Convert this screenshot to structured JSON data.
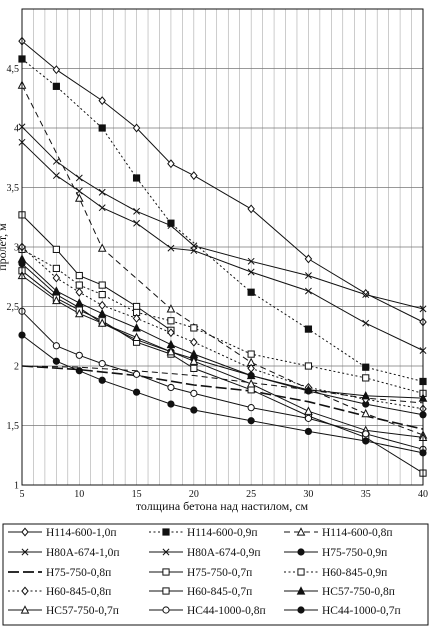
{
  "chart_data": {
    "type": "line",
    "title": "",
    "xlabel": "толщина бетона над настилом, см",
    "ylabel": "пролет, м",
    "xlim": [
      5,
      40
    ],
    "ylim": [
      1,
      5
    ],
    "x_ticks": [
      5,
      10,
      15,
      20,
      25,
      30,
      35,
      40
    ],
    "x_tick_labels": [
      "5",
      "10",
      "15",
      "20",
      "25",
      "30",
      "35",
      "40"
    ],
    "y_ticks": [
      1,
      1.5,
      2,
      2.5,
      3,
      3.5,
      4,
      4.5
    ],
    "y_tick_labels": [
      "1",
      "1,5",
      "2",
      "2,5",
      "3",
      "3,5",
      "4",
      "4,5"
    ],
    "grid": "vertical lines at 1 cm steps, horizontal lines at 0.5 m",
    "legend_position": "bottom",
    "series": [
      {
        "name": "Н114-600-1,0п",
        "marker": "diamond-open",
        "dash": "solid",
        "color": "#111111",
        "x": [
          5,
          8,
          12,
          15,
          18,
          20,
          25,
          30,
          35,
          40
        ],
        "y": [
          4.73,
          4.49,
          4.23,
          4.0,
          3.7,
          3.6,
          3.32,
          2.9,
          2.61,
          2.37
        ]
      },
      {
        "name": "Н114-600-0,9п",
        "marker": "square-filled",
        "dash": "dot",
        "color": "#111111",
        "x": [
          5,
          8,
          12,
          15,
          18,
          25,
          30,
          35,
          40
        ],
        "y": [
          4.58,
          4.35,
          4.0,
          3.58,
          3.2,
          2.62,
          2.31,
          1.99,
          1.87
        ]
      },
      {
        "name": "Н114-600-0,8п",
        "marker": "triangle-open",
        "dash": "dash",
        "color": "#111111",
        "x": [
          5,
          10,
          12,
          18,
          25,
          30,
          35,
          40
        ],
        "y": [
          4.36,
          3.41,
          2.99,
          2.48,
          2.03,
          1.81,
          1.6,
          1.42
        ]
      },
      {
        "name": "Н80А-674-1,0п",
        "marker": "x",
        "dash": "solid",
        "color": "#111111",
        "x": [
          5,
          8,
          10,
          12,
          15,
          18,
          20,
          25,
          30,
          35,
          40
        ],
        "y": [
          4.01,
          3.72,
          3.58,
          3.46,
          3.3,
          3.18,
          3.01,
          2.88,
          2.76,
          2.6,
          2.48
        ]
      },
      {
        "name": "Н80А-674-0,9п",
        "marker": "x",
        "dash": "solid",
        "color": "#111111",
        "x": [
          5,
          8,
          10,
          12,
          15,
          18,
          20,
          25,
          30,
          35,
          40
        ],
        "y": [
          3.88,
          3.6,
          3.47,
          3.33,
          3.2,
          2.99,
          2.97,
          2.79,
          2.63,
          2.36,
          2.13
        ]
      },
      {
        "name": "Н75-750-0,9п",
        "marker": "circle-filled",
        "dash": "solid",
        "color": "#111111",
        "x": [
          5,
          8,
          10,
          12,
          15,
          18,
          20,
          25,
          30,
          35,
          40
        ],
        "y": [
          2.86,
          2.6,
          2.49,
          2.36,
          2.22,
          2.12,
          2.06,
          1.92,
          1.79,
          1.68,
          1.59
        ]
      },
      {
        "name": "Н75-750-0,8п",
        "marker": "none",
        "dash": "longdash",
        "color": "#111111",
        "x": [
          5,
          10,
          15,
          20,
          25,
          30,
          35,
          40
        ],
        "y": [
          2.0,
          1.97,
          1.92,
          1.84,
          1.79,
          1.7,
          1.58,
          1.47
        ]
      },
      {
        "name": "Н75-750-0,7п",
        "marker": "square-open",
        "dash": "solid",
        "color": "#111111",
        "x": [
          5,
          8,
          10,
          12,
          15,
          18
        ],
        "y": [
          3.27,
          2.98,
          2.76,
          2.68,
          2.5,
          2.3
        ]
      },
      {
        "name": "Н60-845-0,9п",
        "marker": "square-open",
        "dash": "dot",
        "color": "#111111",
        "x": [
          5,
          8,
          10,
          12,
          15,
          18,
          20,
          25,
          30,
          35,
          40
        ],
        "y": [
          2.98,
          2.82,
          2.68,
          2.6,
          2.45,
          2.38,
          2.32,
          2.1,
          2.0,
          1.9,
          1.77
        ]
      },
      {
        "name": "Н60-845-0,8п",
        "marker": "diamond-open",
        "dash": "dot",
        "color": "#111111",
        "x": [
          5,
          8,
          10,
          12,
          15,
          18,
          20,
          25,
          30,
          35,
          40
        ],
        "y": [
          3.0,
          2.74,
          2.62,
          2.51,
          2.4,
          2.28,
          2.2,
          1.98,
          1.82,
          1.72,
          1.64
        ]
      },
      {
        "name": "Н60-845-0,7п",
        "marker": "square-open",
        "dash": "solid",
        "color": "#111111",
        "x": [
          5,
          8,
          10,
          12,
          15,
          18,
          20,
          25,
          30,
          35,
          40
        ],
        "y": [
          2.8,
          2.57,
          2.47,
          2.38,
          2.2,
          2.1,
          1.98,
          1.8,
          1.58,
          1.4,
          1.1
        ]
      },
      {
        "name": "НС57-750-0,8п",
        "marker": "triangle-filled",
        "dash": "solid",
        "color": "#111111",
        "x": [
          5,
          8,
          10,
          12,
          15,
          18,
          20,
          25,
          30,
          35,
          40
        ],
        "y": [
          2.9,
          2.63,
          2.53,
          2.44,
          2.32,
          2.18,
          2.1,
          1.92,
          1.8,
          1.75,
          1.73
        ]
      },
      {
        "name": "НС57-750-0,7п",
        "marker": "triangle-open",
        "dash": "solid",
        "color": "#111111",
        "x": [
          5,
          8,
          10,
          12,
          15,
          18,
          20,
          25,
          30,
          35,
          40
        ],
        "y": [
          2.76,
          2.55,
          2.44,
          2.36,
          2.24,
          2.12,
          2.04,
          1.85,
          1.62,
          1.46,
          1.4
        ]
      },
      {
        "name": "НС44-1000-0,8п",
        "marker": "circle-open",
        "dash": "solid",
        "color": "#111111",
        "x": [
          5,
          8,
          10,
          12,
          15,
          18,
          20,
          25,
          30,
          35,
          40
        ],
        "y": [
          2.46,
          2.17,
          2.09,
          2.02,
          1.93,
          1.82,
          1.77,
          1.65,
          1.56,
          1.43,
          1.3
        ]
      },
      {
        "name": "НС44-1000-0,7п",
        "marker": "circle-filled",
        "dash": "solid",
        "color": "#111111",
        "x": [
          5,
          8,
          10,
          12,
          15,
          18,
          20,
          25,
          30,
          35,
          40
        ],
        "y": [
          2.26,
          2.04,
          1.96,
          1.88,
          1.78,
          1.68,
          1.63,
          1.54,
          1.45,
          1.37,
          1.27
        ]
      },
      {
        "name": "",
        "marker": "none",
        "dash": "dash",
        "color": "#111111",
        "x": [
          5,
          10,
          15,
          20,
          25,
          30,
          35,
          40
        ],
        "y": [
          2.0,
          1.99,
          1.96,
          1.92,
          1.86,
          1.8,
          1.73,
          1.69
        ]
      }
    ],
    "legend": [
      [
        "Н114-600-1,0п",
        "Н114-600-0,9п",
        "Н114-600-0,8п"
      ],
      [
        "Н80А-674-1,0п",
        "Н80А-674-0,9п",
        "Н75-750-0,9п"
      ],
      [
        "Н75-750-0,8п",
        "Н75-750-0,7п",
        "Н60-845-0,9п"
      ],
      [
        "Н60-845-0,8п",
        "Н60-845-0,7п",
        "НС57-750-0,8п"
      ],
      [
        "НС57-750-0,7п",
        "НС44-1000-0,8п",
        "НС44-1000-0,7п"
      ]
    ]
  }
}
